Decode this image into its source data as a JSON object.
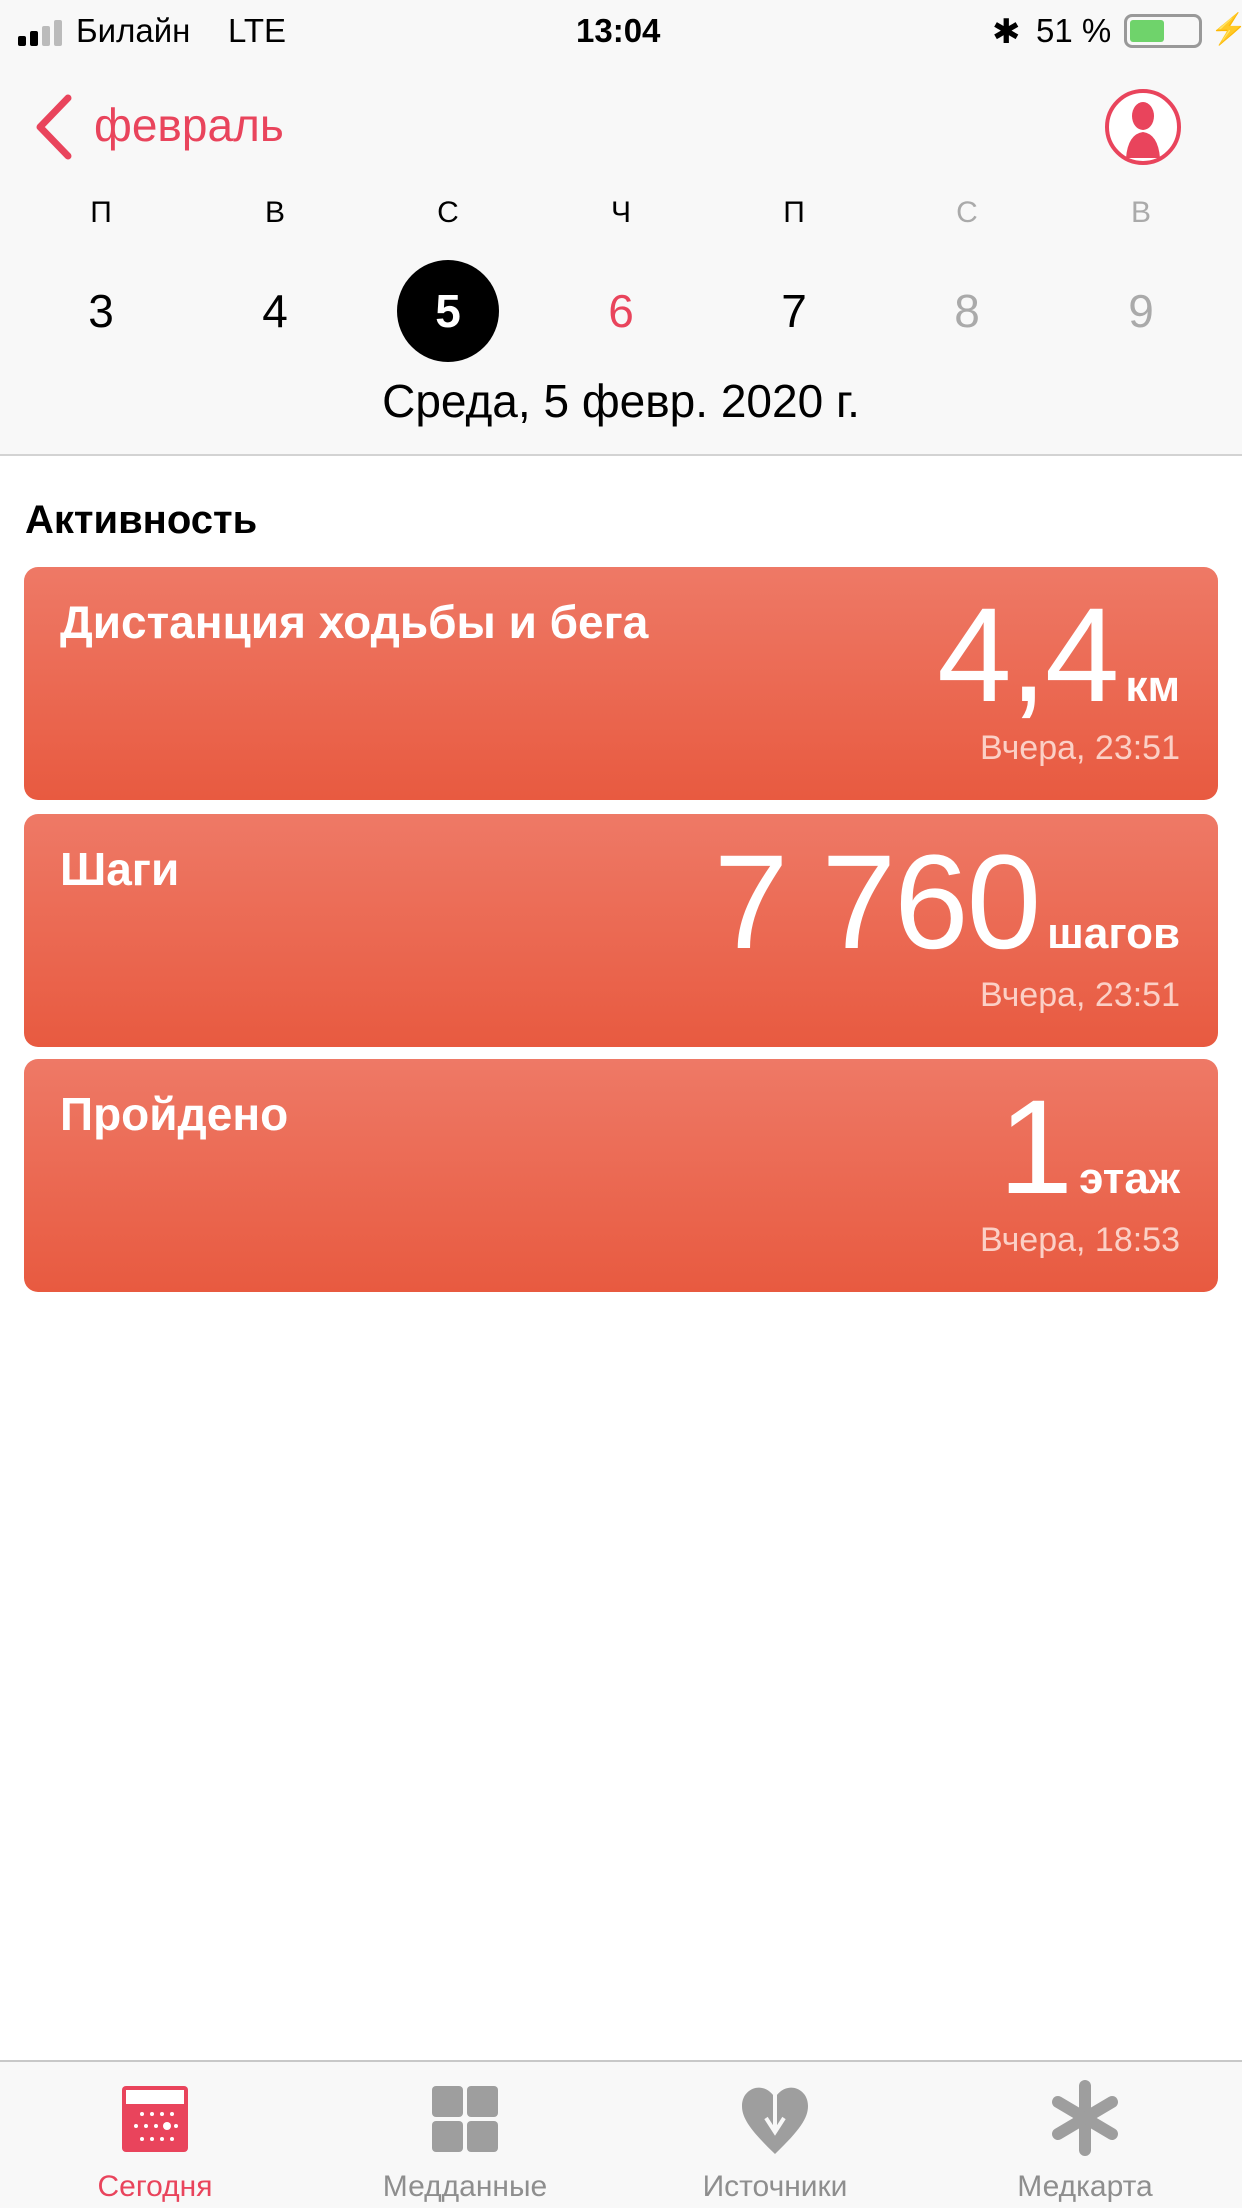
{
  "status_bar": {
    "carrier": "Билайн",
    "network": "LTE",
    "time": "13:04",
    "battery": "51 %",
    "battery_level": 0.51
  },
  "nav": {
    "back_label": "февраль",
    "profile_icon": "person-circle-icon"
  },
  "week": {
    "days": [
      {
        "letter": "П",
        "num": "3",
        "state": "normal"
      },
      {
        "letter": "В",
        "num": "4",
        "state": "normal"
      },
      {
        "letter": "С",
        "num": "5",
        "state": "selected"
      },
      {
        "letter": "Ч",
        "num": "6",
        "state": "today"
      },
      {
        "letter": "П",
        "num": "7",
        "state": "normal"
      },
      {
        "letter": "С",
        "num": "8",
        "state": "future"
      },
      {
        "letter": "В",
        "num": "9",
        "state": "future"
      }
    ],
    "date_label": "Среда, 5 февр. 2020 г."
  },
  "section_title": "Активность",
  "cards": [
    {
      "title": "Дистанция ходьбы и бега",
      "value": "4,4",
      "unit": "км",
      "time": "Вчера, 23:51"
    },
    {
      "title": "Шаги",
      "value": "7 760",
      "unit": "шагов",
      "time": "Вчера, 23:51"
    },
    {
      "title": "Пройдено",
      "value": "1",
      "unit": "этаж",
      "time": "Вчера, 18:53"
    }
  ],
  "tabs": [
    {
      "label": "Сегодня",
      "icon": "calendar-icon",
      "active": true
    },
    {
      "label": "Медданные",
      "icon": "grid-icon",
      "active": false
    },
    {
      "label": "Источники",
      "icon": "heart-download-icon",
      "active": false
    },
    {
      "label": "Медкарта",
      "icon": "asterisk-icon",
      "active": false
    }
  ],
  "colors": {
    "accent": "#e9445c",
    "card_top": "#ee7966",
    "card_bottom": "#e85a40",
    "inactive": "#8e8e8e"
  }
}
